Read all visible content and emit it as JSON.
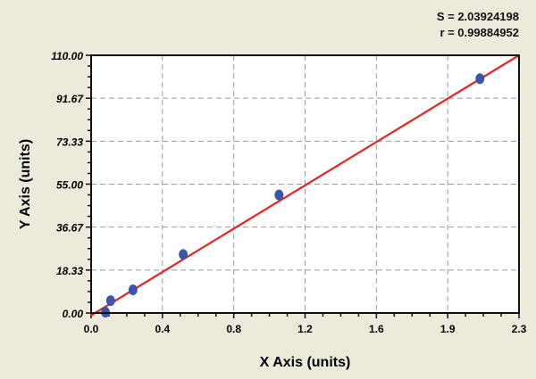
{
  "chart_data": {
    "type": "scatter",
    "xlabel": "X Axis (units)",
    "ylabel": "Y Axis (units)",
    "xlim": [
      0,
      2.3
    ],
    "ylim": [
      0,
      110
    ],
    "x_tick_labels": [
      "0.0",
      "0.4",
      "0.8",
      "1.2",
      "1.6",
      "1.9",
      "2.3"
    ],
    "y_tick_labels": [
      "0.00",
      "18.33",
      "36.67",
      "55.00",
      "73.33",
      "91.67",
      "110.00"
    ],
    "grid": true,
    "points": [
      {
        "x": 0.077,
        "y": 0.4
      },
      {
        "x": 0.105,
        "y": 5.3
      },
      {
        "x": 0.225,
        "y": 9.9
      },
      {
        "x": 0.495,
        "y": 25.0
      },
      {
        "x": 1.01,
        "y": 50.4
      },
      {
        "x": 2.09,
        "y": 100.0
      }
    ],
    "fit_line": {
      "x": [
        0,
        2.3
      ],
      "y": [
        -1,
        110
      ]
    },
    "stats": {
      "s": "S = 2.03924198",
      "r": "r = 0.99884952"
    },
    "colors": {
      "points": "#3b56a8",
      "fit": "#e8231e",
      "background": "#ecebdb",
      "plot": "#ffffff",
      "grid": "#999999"
    }
  }
}
